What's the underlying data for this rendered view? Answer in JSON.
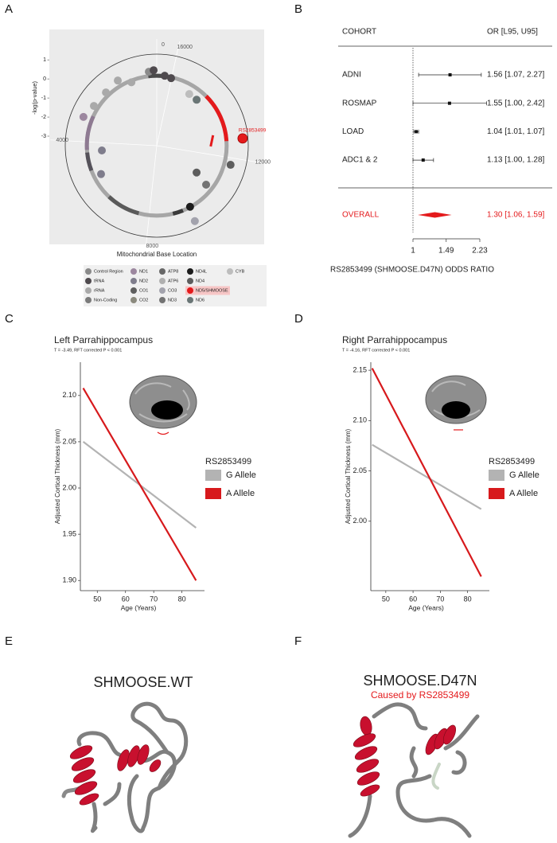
{
  "panel_labels": [
    "A",
    "B",
    "C",
    "D",
    "E",
    "F"
  ],
  "chart_data": [
    {
      "type": "polar_scatter",
      "y_label": "-log(p-value)",
      "x_label": "Mitochondrial Base Location",
      "xlim": [
        0,
        16569
      ],
      "xticks": [
        0,
        4000,
        8000,
        12000,
        16000
      ],
      "ylim": [
        -3.5,
        1.3
      ],
      "yticks": [
        1,
        0,
        -1,
        -2,
        -3
      ],
      "annotation": "RS2853499",
      "ring_segments": [
        {
          "start": 3000,
          "end": 4300,
          "color": "#8e7a92"
        },
        {
          "start": 4400,
          "end": 5100,
          "color": "#55525a"
        },
        {
          "start": 6300,
          "end": 7600,
          "color": "#5a5a5a"
        },
        {
          "start": 8900,
          "end": 9300,
          "color": "#3a3a3a"
        },
        {
          "start": 12600,
          "end": 14500,
          "color": "#e41a1c"
        },
        {
          "start": 16300,
          "end": 16569,
          "color": "#4a4a4a"
        },
        {
          "start": 0,
          "end": 320,
          "color": "#4a4a4a"
        }
      ],
      "series": [
        {
          "name": "Control Region",
          "color": "#8a8a8a",
          "x": [
            281
          ],
          "values": [
            0.4
          ]
        },
        {
          "name": "tRNA",
          "color": "#4f4a4e",
          "x": [
            110,
            16270,
            16017
          ],
          "values": [
            0.46,
            0.19,
            0.12
          ]
        },
        {
          "name": "rRNA",
          "color": "#a9a9a9",
          "x": [
            2656,
            2011,
            1422,
            1003
          ],
          "values": [
            0.4,
            0.36,
            0.48,
            0.08
          ]
        },
        {
          "name": "Non-Coding",
          "color": "#7b7b7b",
          "x": [],
          "values": []
        },
        {
          "name": "ND1",
          "color": "#9c879f",
          "x": [
            3157
          ],
          "values": [
            0.63
          ]
        },
        {
          "name": "ND2",
          "color": "#7f7d8c",
          "x": [
            4372,
            5385
          ],
          "values": [
            -0.61,
            -0.22
          ]
        },
        {
          "name": "CO1",
          "color": "#5e5e5e",
          "x": [],
          "values": []
        },
        {
          "name": "CO2",
          "color": "#8b8a7e",
          "x": [],
          "values": []
        },
        {
          "name": "ATP8",
          "color": "#676767",
          "x": [],
          "values": []
        },
        {
          "name": "ATP6",
          "color": "#b0b0b0",
          "x": [],
          "values": []
        },
        {
          "name": "CO3",
          "color": "#a3a3ad",
          "x": [
            9518
          ],
          "values": [
            0.93
          ]
        },
        {
          "name": "ND3",
          "color": "#737373",
          "x": [
            10664
          ],
          "values": [
            -0.2
          ]
        },
        {
          "name": "ND4L",
          "color": "#1c1c1c",
          "x": [
            9601
          ],
          "values": [
            0.15
          ]
        },
        {
          "name": "ND4",
          "color": "#5d5d5d",
          "x": [
            10862,
            11758
          ],
          "values": [
            -0.98,
            0.5
          ]
        },
        {
          "name": "ND5/SHMOOSE",
          "color": "#e41a1c",
          "x": [
            12649
          ],
          "values": [
            1.02
          ]
        },
        {
          "name": "ND6",
          "color": "#6a7676",
          "x": [
            14683
          ],
          "values": [
            -0.31
          ]
        },
        {
          "name": "CYB",
          "color": "#bdbdbd",
          "x": [
            15087
          ],
          "values": [
            -0.3
          ]
        }
      ]
    },
    {
      "type": "forest",
      "header": [
        "COHORT",
        "OR [L95, U95]"
      ],
      "categories": [
        "ADNI",
        "ROSMAP",
        "LOAD",
        "ADC1 & 2"
      ],
      "values": [
        1.56,
        1.55,
        1.04,
        1.13
      ],
      "lower": [
        1.07,
        1.0,
        1.01,
        1.0
      ],
      "upper": [
        2.27,
        2.42,
        1.07,
        1.28
      ],
      "value_labels": [
        "1.56 [1.07, 2.27]",
        "1.55 [1.00, 2.42]",
        "1.04 [1.01, 1.07]",
        "1.13 [1.00, 1.28]"
      ],
      "overall": {
        "name": "OVERALL",
        "value": 1.3,
        "lower": 1.06,
        "upper": 1.59,
        "value_label": "1.30 [1.06, 1.59]",
        "color": "#e41a1c"
      },
      "x_label": "RS2853499 (SHMOOSE.D47N) ODDS RATIO",
      "log_scale": true,
      "reference": 1,
      "xlim": [
        1,
        2.23
      ],
      "xticks": [
        1,
        1.49,
        2.23
      ]
    },
    {
      "type": "line",
      "title": "Left Parrahippocampus",
      "subtitle": "T = -3.49, RFT corrected P < 0.001",
      "x_label": "Age (Years)",
      "y_label": "Adjusted Cortical Thickness (mm)",
      "x": [
        45,
        85
      ],
      "xlim": [
        44,
        88
      ],
      "xticks": [
        50,
        60,
        70,
        80
      ],
      "ylim": [
        1.889,
        2.136
      ],
      "yticks": [
        {
          "value": 1.9,
          "label": "1.90"
        },
        1.95,
        {
          "value": 2.0,
          "label": "2.00"
        },
        2.05,
        {
          "value": 2.1,
          "label": "2.10"
        }
      ],
      "legend_title": "RS2853499",
      "series": [
        {
          "name": "G Allele",
          "color": "#b3b3b3",
          "values": [
            2.05,
            1.957
          ]
        },
        {
          "name": "A Allele",
          "color": "#d7191c",
          "values": [
            2.108,
            1.9
          ]
        }
      ]
    },
    {
      "type": "line",
      "title": "Right Parrahippocampus",
      "subtitle": "T = -4.16, RFT corrected P < 0.001",
      "x_label": "Age (Years)",
      "y_label": "Adjusted Cortical Thickness (mm)",
      "x": [
        45,
        85
      ],
      "xlim": [
        44.5,
        88
      ],
      "xticks": [
        50,
        60,
        70,
        80
      ],
      "ylim": [
        1.931,
        2.158
      ],
      "yticks": [
        {
          "value": 2.0,
          "label": "2.00"
        },
        2.05,
        {
          "value": 2.1,
          "label": "2.10"
        },
        2.15
      ],
      "legend_title": "RS2853499",
      "series": [
        {
          "name": "G Allele",
          "color": "#b3b3b3",
          "values": [
            2.076,
            2.012
          ]
        },
        {
          "name": "A Allele",
          "color": "#d7191c",
          "values": [
            2.152,
            1.945
          ]
        }
      ]
    }
  ],
  "structures": [
    {
      "title": "SHMOOSE.WT"
    },
    {
      "title": "SHMOOSE.D47N",
      "subtitle": "Caused by RS2853499"
    }
  ]
}
